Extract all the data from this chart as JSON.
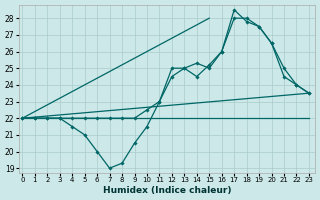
{
  "xlabel": "Humidex (Indice chaleur)",
  "bg_color": "#cce8e8",
  "grid_color": "#aacccc",
  "line_color": "#006666",
  "xlim": [
    -0.3,
    23.5
  ],
  "ylim": [
    18.7,
    28.8
  ],
  "yticks": [
    19,
    20,
    21,
    22,
    23,
    24,
    25,
    26,
    27,
    28
  ],
  "xticks": [
    0,
    1,
    2,
    3,
    4,
    5,
    6,
    7,
    8,
    9,
    10,
    11,
    12,
    13,
    14,
    15,
    16,
    17,
    18,
    19,
    20,
    21,
    22,
    23
  ],
  "series": [
    {
      "x": [
        0,
        23
      ],
      "y": [
        22,
        23.5
      ],
      "marker": false,
      "lw": 0.9
    },
    {
      "x": [
        0,
        23
      ],
      "y": [
        22,
        22.0
      ],
      "marker": false,
      "lw": 0.9
    },
    {
      "x": [
        0,
        15
      ],
      "y": [
        22,
        28.0
      ],
      "marker": false,
      "lw": 0.9
    },
    {
      "x": [
        0,
        1,
        2,
        3,
        4,
        5,
        6,
        7,
        8,
        9,
        10,
        11,
        12,
        13,
        14,
        15,
        16,
        17,
        18,
        19,
        20,
        21,
        22,
        23
      ],
      "y": [
        22,
        22,
        22,
        22,
        21.5,
        21.0,
        20.0,
        19.0,
        19.3,
        20.5,
        21.5,
        23.0,
        25.0,
        25.0,
        24.5,
        25.2,
        26.0,
        28.0,
        28.0,
        27.5,
        26.5,
        25.0,
        24.0,
        23.5
      ],
      "marker": true,
      "lw": 0.9
    },
    {
      "x": [
        0,
        1,
        2,
        3,
        4,
        5,
        6,
        7,
        8,
        9,
        10,
        11,
        12,
        13,
        14,
        15,
        16,
        17,
        18,
        19,
        20,
        21,
        22,
        23
      ],
      "y": [
        22,
        22,
        22,
        22,
        22,
        22,
        22,
        22,
        22,
        22,
        22.5,
        23.0,
        24.5,
        25.0,
        25.3,
        25.0,
        26.0,
        28.5,
        27.8,
        27.5,
        26.5,
        24.5,
        24.0,
        23.5
      ],
      "marker": true,
      "lw": 0.9
    }
  ]
}
